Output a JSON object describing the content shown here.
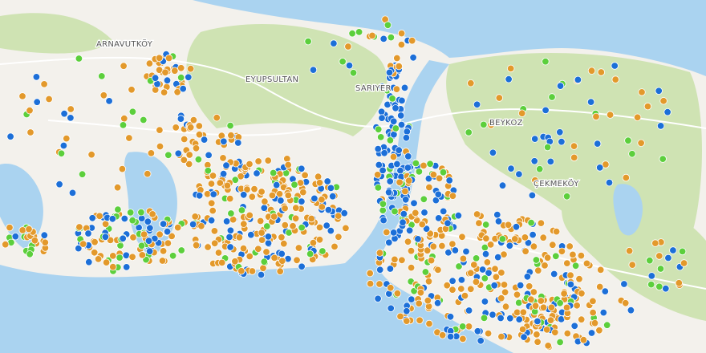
{
  "map": {
    "places": [
      {
        "name": "ARNAVUTKÖY"
      },
      {
        "name": "EYUPSULTAN"
      },
      {
        "name": "SARIYER"
      },
      {
        "name": "BEYKOZ"
      },
      {
        "name": "ÇEKMEKÖY"
      }
    ]
  }
}
